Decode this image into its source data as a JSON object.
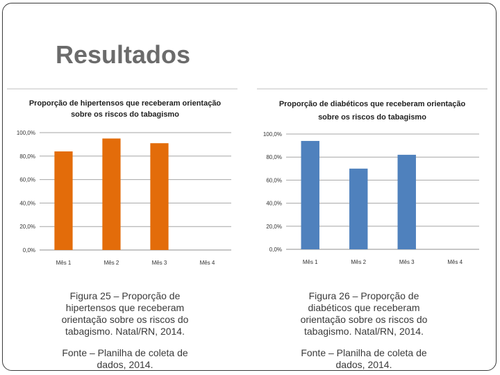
{
  "slide": {
    "title": "Resultados"
  },
  "chart_data": [
    {
      "type": "bar",
      "title": "Proporção de hipertensos que receberam orientação sobre os riscos do tabagismo",
      "title_lines": [
        "Proporção de hipertensos que receberam orientação",
        "sobre os riscos do tabagismo"
      ],
      "categories": [
        "Mês 1",
        "Mês 2",
        "Mês 3",
        "Mês 4"
      ],
      "values": [
        84,
        95,
        91,
        null
      ],
      "ylim": [
        0,
        100
      ],
      "yticks": [
        "0,0%",
        "20,0%",
        "40,0%",
        "60,0%",
        "80,0%",
        "100,0%"
      ],
      "grid": true,
      "color": "#e36c0a"
    },
    {
      "type": "bar",
      "title": "Proporção de diabéticos que receberam orientação sobre os riscos do tabagismo",
      "title_lines": [
        "Proporção de diabéticos que receberam orientação",
        "sobre os riscos do tabagismo"
      ],
      "categories": [
        "Mês 1",
        "Mês 2",
        "Mês 3",
        "Mês 4"
      ],
      "values": [
        94,
        70,
        82,
        null
      ],
      "ylim": [
        0,
        100
      ],
      "yticks": [
        "0,0%",
        "20,0%",
        "40,0%",
        "60,0%",
        "80,0%",
        "100,0%"
      ],
      "grid": true,
      "color": "#4f81bd"
    }
  ],
  "captions": [
    {
      "figure": "Figura 25 – Proporção de hipertensos que receberam orientação sobre os riscos do tabagismo. Natal/RN, 2014.",
      "source": "Fonte – Planilha de coleta de dados, 2014."
    },
    {
      "figure": "Figura 26 – Proporção de diabéticos que receberam orientação sobre os riscos do tabagismo. Natal/RN, 2014.",
      "source": "Fonte – Planilha de coleta de dados, 2014."
    }
  ]
}
